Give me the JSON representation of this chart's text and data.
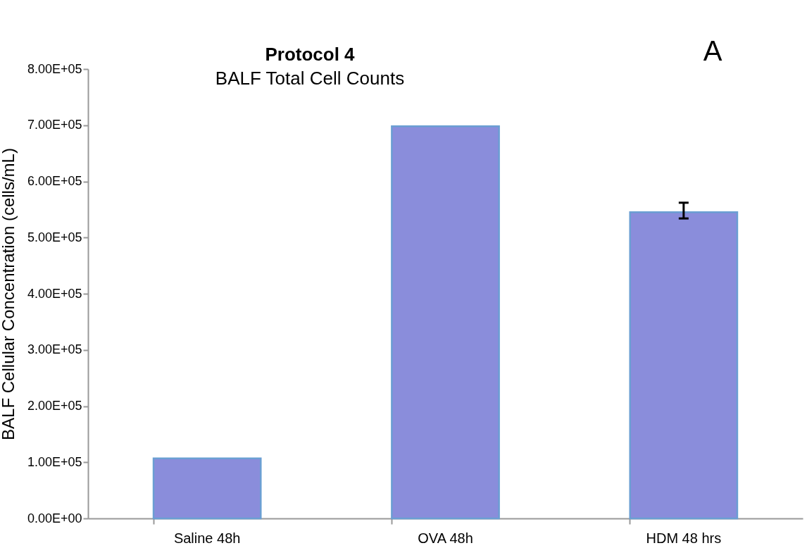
{
  "chart_data": {
    "type": "bar",
    "title": "Protocol 4",
    "subtitle": "BALF Total Cell Counts",
    "ylabel": "BALF Cellular Concentration (cells/mL)",
    "categories": [
      "Saline 48h",
      "OVA 48h",
      "HDM 48 hrs"
    ],
    "values": [
      107000,
      698000,
      545000
    ],
    "errors": [
      null,
      null,
      [
        534000,
        562000
      ]
    ],
    "color": "#8a8ddb",
    "ylim": [
      0,
      800000
    ],
    "yticks": [
      {
        "value": 0,
        "label": "0.00E+00"
      },
      {
        "value": 100000,
        "label": "1.00E+05"
      },
      {
        "value": 200000,
        "label": "2.00E+05"
      },
      {
        "value": 300000,
        "label": "3.00E+05"
      },
      {
        "value": 400000,
        "label": "4.00E+05"
      },
      {
        "value": 500000,
        "label": "5.00E+05"
      },
      {
        "value": 600000,
        "label": "6.00E+05"
      },
      {
        "value": 700000,
        "label": "7.00E+05"
      },
      {
        "value": 800000,
        "label": "8.00E+05"
      }
    ],
    "annotations": [
      "A"
    ],
    "grid": false
  }
}
